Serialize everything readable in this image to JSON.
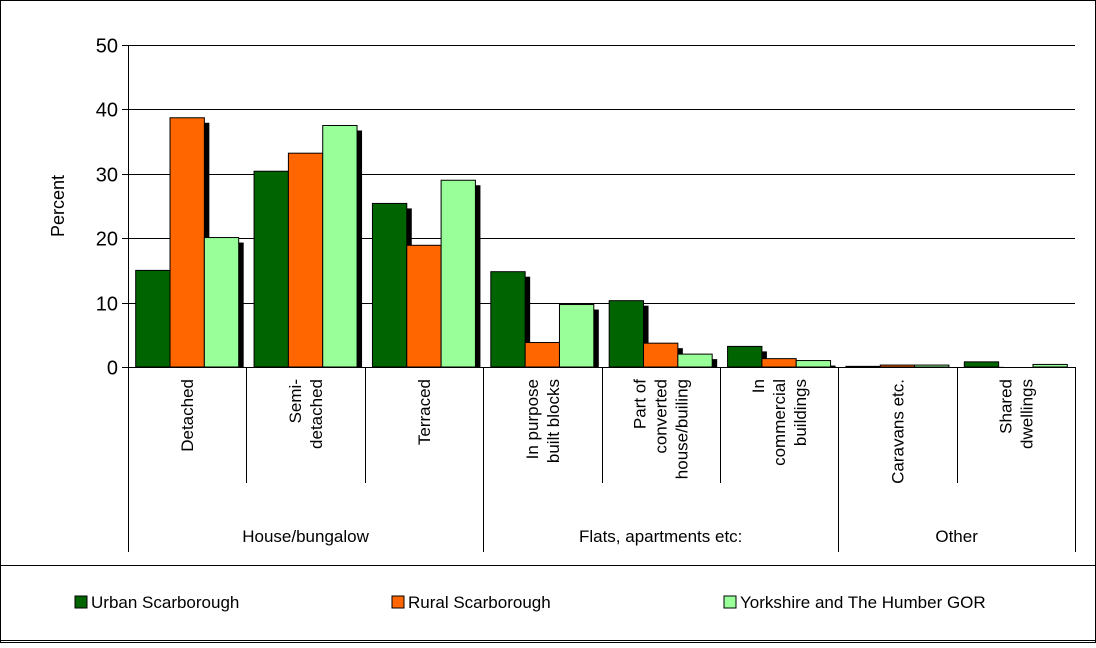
{
  "chart_data": {
    "type": "bar",
    "ylabel": "Percent",
    "ylim": [
      0,
      50
    ],
    "yticks": [
      0,
      10,
      20,
      30,
      40,
      50
    ],
    "grid": true,
    "legend_position": "bottom",
    "categories": [
      "Detached",
      "Semi-detached",
      "Terraced",
      "In purpose built blocks",
      "Part of converted house/builing",
      "In commercial buildings",
      "Caravans etc.",
      "Shared dwellings"
    ],
    "category_label_lines": [
      [
        "Detached"
      ],
      [
        "Semi-",
        "detached"
      ],
      [
        "Terraced"
      ],
      [
        "In purpose",
        "built blocks"
      ],
      [
        "Part of",
        "converted",
        "house/builing"
      ],
      [
        "In",
        "commercial",
        "buildings"
      ],
      [
        "Caravans etc."
      ],
      [
        "Shared",
        "dwellings"
      ]
    ],
    "groups": [
      {
        "label": "House/bungalow",
        "span": 3
      },
      {
        "label": "Flats, apartments etc:",
        "span": 3
      },
      {
        "label": "Other",
        "span": 2
      }
    ],
    "series": [
      {
        "name": "Urban Scarborough",
        "color": "#006400",
        "values": [
          15.0,
          30.4,
          25.4,
          14.8,
          10.3,
          3.2,
          0.1,
          0.8
        ]
      },
      {
        "name": "Rural Scarborough",
        "color": "#ff6600",
        "values": [
          38.7,
          33.2,
          18.9,
          3.8,
          3.7,
          1.3,
          0.3,
          0.0
        ]
      },
      {
        "name": "Yorkshire and The Humber GOR",
        "color": "#99ff99",
        "values": [
          20.1,
          37.5,
          29.0,
          9.7,
          2.0,
          1.0,
          0.3,
          0.4
        ]
      }
    ]
  }
}
